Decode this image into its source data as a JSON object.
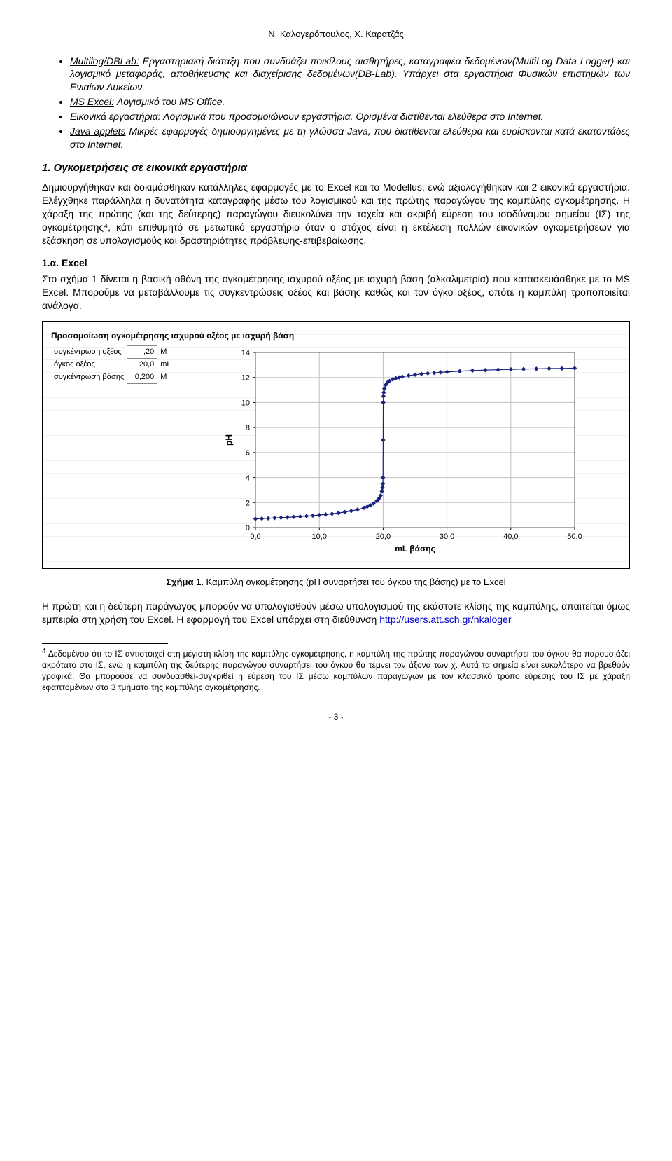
{
  "header": {
    "authors": "Ν. Καλογερόπουλος, Χ. Καρατζάς"
  },
  "bullets": [
    {
      "lead_u": "Multilog/DBLab:",
      "lead_i": true,
      "text": " Εργαστηριακή διάταξη που συνδυάζει ποικίλους αισθητήρες, καταγραφέα δεδομένων(MultiLog Data Logger) και λογισμικό μεταφοράς, αποθήκευσης  και διαχείρισης δεδομένων(DB-Lab). Υπάρχει στα εργαστήρια Φυσικών επιστημών των Ενιαίων Λυκείων."
    },
    {
      "lead_u": "MS Excel:",
      "lead_i": true,
      "text": " Λογισμικό του MS Office."
    },
    {
      "lead_u": "Εικονικά εργαστήρια:",
      "lead_i": true,
      "text": " Λογισμικά που προσομοιώνουν εργαστήρια. Ορισμένα διατίθενται ελεύθερα στο Internet."
    },
    {
      "lead_u": "Java applets",
      "lead_i": true,
      "text": " Μικρές εφαρμογές δημιουργημένες με τη γλώσσα Java, που διατίθενται ελεύθερα και ευρίσκονται κατά εκατοντάδες στο Internet."
    }
  ],
  "section1": {
    "title": "1. Ογκομετρήσεις σε εικονικά εργαστήρια",
    "p1": "Δημιουργήθηκαν και δοκιμάσθηκαν κατάλληλες  εφαρμογές με το Excel και το Modellus, ενώ αξιολογήθηκαν και 2 εικονικά εργαστήρια. Ελέγχθηκε παράλληλα η δυνατότητα καταγραφής μέσω του λογισμικού και της πρώτης παραγώγου της καμπύλης ογκομέτρησης. Η χάραξη της πρώτης (και της δεύτερης) παραγώγου διευκολύνει την ταχεία και ακριβή εύρεση του ισοδύναμου σημείου (ΙΣ) της ογκομέτρησης⁴, κάτι επιθυμητό σε μετωπικό εργαστήριο όταν ο στόχος είναι η εκτέλεση πολλών εικονικών ογκομετρήσεων για εξάσκηση σε υπολογισμούς και δραστηριότητες πρόβλεψης-επιβεβαίωσης."
  },
  "sub1a": {
    "title": "1.α. Excel",
    "p": "Στο σχήμα 1 δίνεται η βασική οθόνη της ογκομέτρησης ισχυρού οξέος με ισχυρή βάση (αλκαλιμετρία) που κατασκευάσθηκε με το MS Excel. Μπορούμε να μεταβάλλουμε τις συγκεντρώσεις οξέος και βάσης καθώς και τον όγκο οξέος, οπότε η καμπύλη τροποποιείται ανάλογα."
  },
  "chart": {
    "frame_title": "Προσομοίωση ογκομέτρησης ισχυρού οξέος με ισχυρή βάση",
    "params": [
      {
        "label": "συγκέντρωση οξέος",
        "value": ",20",
        "unit": "M"
      },
      {
        "label": "όγκος οξέος",
        "value": "20,0",
        "unit": "mL"
      },
      {
        "label": "συγκέντρωση βάσης",
        "value": "0,200",
        "unit": "M"
      }
    ],
    "type": "scatter-line",
    "xlabel": "mL βάσης",
    "ylabel": "pH",
    "xlim": [
      0,
      50
    ],
    "xtick_step": 10,
    "ylim": [
      0,
      14
    ],
    "ytick_step": 2,
    "xticks": [
      "0,0",
      "10,0",
      "20,0",
      "30,0",
      "40,0",
      "50,0"
    ],
    "yticks": [
      "0",
      "2",
      "4",
      "6",
      "8",
      "10",
      "12",
      "14"
    ],
    "series_color": "#1a237e",
    "marker": "diamond",
    "marker_size": 5,
    "line_width": 1.2,
    "background_color": "#ffffff",
    "grid_color": "#c0c0c0",
    "points": [
      [
        0,
        0.7
      ],
      [
        1,
        0.72
      ],
      [
        2,
        0.74
      ],
      [
        3,
        0.77
      ],
      [
        4,
        0.79
      ],
      [
        5,
        0.82
      ],
      [
        6,
        0.85
      ],
      [
        7,
        0.88
      ],
      [
        8,
        0.92
      ],
      [
        9,
        0.96
      ],
      [
        10,
        1.0
      ],
      [
        11,
        1.05
      ],
      [
        12,
        1.1
      ],
      [
        13,
        1.17
      ],
      [
        14,
        1.24
      ],
      [
        15,
        1.33
      ],
      [
        16,
        1.44
      ],
      [
        17,
        1.58
      ],
      [
        17.5,
        1.67
      ],
      [
        18,
        1.78
      ],
      [
        18.5,
        1.92
      ],
      [
        19,
        2.12
      ],
      [
        19.2,
        2.22
      ],
      [
        19.4,
        2.36
      ],
      [
        19.6,
        2.56
      ],
      [
        19.8,
        2.9
      ],
      [
        19.9,
        3.2
      ],
      [
        19.95,
        3.5
      ],
      [
        19.98,
        4.0
      ],
      [
        20,
        7.0
      ],
      [
        20.02,
        10.0
      ],
      [
        20.05,
        10.5
      ],
      [
        20.1,
        10.8
      ],
      [
        20.2,
        11.1
      ],
      [
        20.4,
        11.4
      ],
      [
        20.6,
        11.55
      ],
      [
        20.8,
        11.65
      ],
      [
        21,
        11.72
      ],
      [
        21.5,
        11.85
      ],
      [
        22,
        11.94
      ],
      [
        22.5,
        12.0
      ],
      [
        23,
        12.06
      ],
      [
        24,
        12.15
      ],
      [
        25,
        12.22
      ],
      [
        26,
        12.28
      ],
      [
        27,
        12.33
      ],
      [
        28,
        12.37
      ],
      [
        29,
        12.41
      ],
      [
        30,
        12.44
      ],
      [
        32,
        12.5
      ],
      [
        34,
        12.55
      ],
      [
        36,
        12.59
      ],
      [
        38,
        12.62
      ],
      [
        40,
        12.65
      ],
      [
        42,
        12.67
      ],
      [
        44,
        12.69
      ],
      [
        46,
        12.71
      ],
      [
        48,
        12.72
      ],
      [
        50,
        12.74
      ]
    ]
  },
  "caption": {
    "bold": "Σχήμα 1.",
    "rest": " Καμπύλη ογκομέτρησης (pH συναρτήσει του όγκου της βάσης) με το Excel"
  },
  "afterChart": {
    "p_pre": "Η πρώτη και η δεύτερη παράγωγος μπορούν να υπολογισθούν μέσω υπολογισμού της εκάστοτε κλίσης της καμπύλης, απαιτείται όμως εμπειρία στη χρήση του Excel. Η εφαρμογή του Excel υπάρχει στη διεύθυνση ",
    "link_text": "http://users.att.sch.gr/nkaloger",
    "link_href": "#"
  },
  "footnote": {
    "num": "4",
    "text": " Δεδομένου ότι το ΙΣ αντιστοιχεί στη μέγιστη κλίση της καμπύλης ογκομέτρησης, η καμπύλη της πρώτης παραγώγου συναρτήσει του όγκου θα παρουσιάζει ακρότατο στο ΙΣ, ενώ η καμπύλη της δεύτερης παραγώγου συναρτήσει του όγκου θα τέμνει τον άξονα των χ. Αυτά τα σημεία είναι ευκολότερο να βρεθούν γραφικά. Θα μπορούσε να συνδυασθεί-συγκριθεί η εύρεση του ΙΣ μέσω καμπύλων παραγώγων με τον κλασσικό τρόπο εύρεσης του ΙΣ με χάραξη εφαπτομένων στα 3 τμήματα της καμπύλης ογκομέτρησης."
  },
  "pagenum": "- 3 -"
}
